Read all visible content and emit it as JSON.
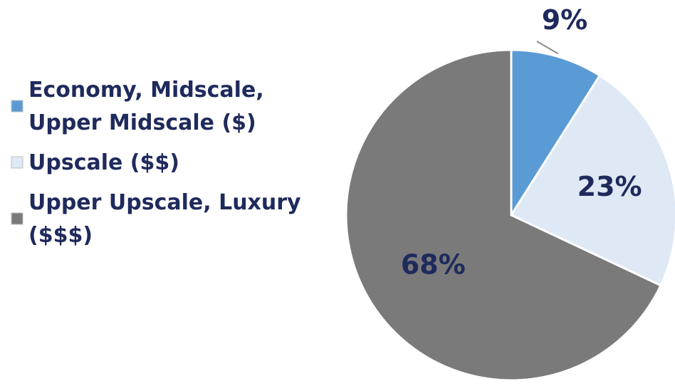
{
  "chart_data": {
    "type": "pie",
    "categories": [
      "Economy, Midscale, Upper Midscale ($)",
      "Upscale ($$)",
      "Upper Upscale, Luxury ($$$)"
    ],
    "values": [
      9,
      23,
      68
    ],
    "data_labels": [
      "9%",
      "23%",
      "68%"
    ],
    "legend": {
      "placement": "left",
      "entries": [
        {
          "lines": [
            "Economy, Midscale,",
            "Upper Midscale ($)"
          ]
        },
        {
          "lines": [
            "Upscale ($$)"
          ]
        },
        {
          "lines": [
            "Upper Upscale, Luxury",
            "($$$)"
          ]
        }
      ]
    },
    "colors": [
      "#5b9bd5",
      "#dfe8f5",
      "#7a7a7a"
    ],
    "start_angle_deg": 0,
    "direction": "clockwise"
  }
}
